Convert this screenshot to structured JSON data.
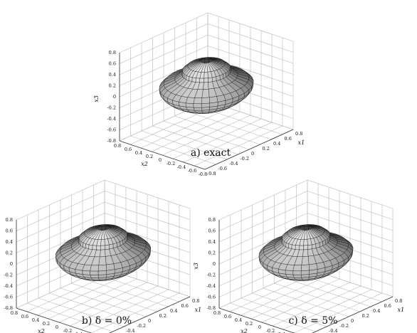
{
  "figure": {
    "axis_labels": {
      "x1": "x1",
      "x2": "x2",
      "x3": "x3"
    },
    "x3_ticks": [
      "0.8",
      "0.6",
      "0.4",
      "0.2",
      "0",
      "-0.2",
      "-0.4",
      "-0.6",
      "-0.8"
    ],
    "x2_ticks": [
      "0.8",
      "0.6",
      "0.4",
      "0.2",
      "0",
      "-0.2",
      "-0.4",
      "-0.6",
      "-0.8"
    ],
    "x1_ticks": [
      "-0.8",
      "-0.6",
      "-0.4",
      "-0.2",
      "0",
      "0.2",
      "0.4",
      "0.6",
      "0.8"
    ],
    "panels": [
      {
        "id": "a",
        "caption_prefix": "a)",
        "caption_text": "exact"
      },
      {
        "id": "b",
        "caption_prefix": "b)",
        "caption_text": "δ = 0%"
      },
      {
        "id": "c",
        "caption_prefix": "c)",
        "caption_text": "δ = 5%"
      }
    ]
  }
}
